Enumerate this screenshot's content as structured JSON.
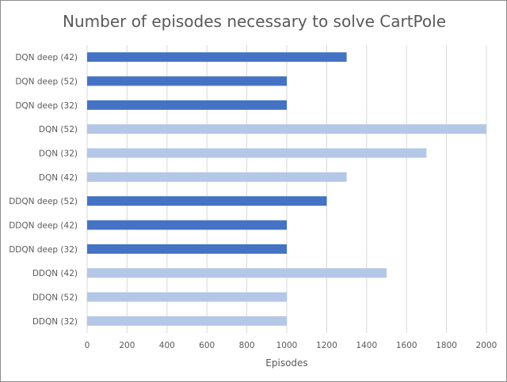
{
  "chart_data": {
    "type": "bar",
    "orientation": "horizontal",
    "title": "Number of episodes necessary to solve CartPole",
    "xlabel": "Episodes",
    "ylabel": "",
    "xlim": [
      0,
      2000
    ],
    "x_ticks": [
      0,
      200,
      400,
      600,
      800,
      1000,
      1200,
      1400,
      1600,
      1800,
      2000
    ],
    "grid": "vertical",
    "legend": "none",
    "categories": [
      "DQN deep (42)",
      "DQN deep (52)",
      "DQN deep (32)",
      "DQN (52)",
      "DQN (32)",
      "DQN (42)",
      "DDQN deep (52)",
      "DDQN deep (42)",
      "DDQN deep (32)",
      "DDQN (42)",
      "DDQN (52)",
      "DDQN (32)"
    ],
    "values": [
      1300,
      1000,
      1000,
      2000,
      1700,
      1300,
      1200,
      1000,
      1000,
      1500,
      1000,
      1000
    ],
    "colors": [
      "#4472c4",
      "#4472c4",
      "#4472c4",
      "#b4c7e7",
      "#b4c7e7",
      "#b4c7e7",
      "#4472c4",
      "#4472c4",
      "#4472c4",
      "#b4c7e7",
      "#b4c7e7",
      "#b4c7e7"
    ],
    "gridline_color": "#d9d9d9"
  }
}
